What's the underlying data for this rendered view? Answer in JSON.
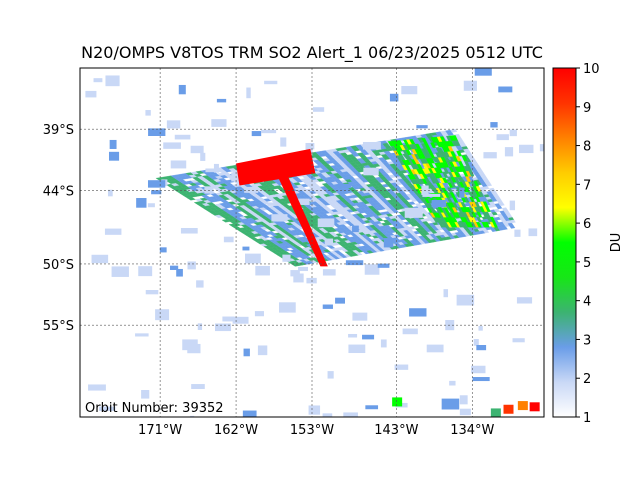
{
  "title": "N20/OMPS V8TOS TRM SO2 Alert_1 06/23/2025 0512 UTC",
  "annotation": "Orbit Number: 39352",
  "colors": {
    "swath_red": "#ff0000",
    "scale": [
      "#ffffff",
      "#c9d8f6",
      "#6a9de8",
      "#3cb371",
      "#17e617",
      "#00ff00",
      "#ffff00",
      "#ffcc00",
      "#ff8000",
      "#ff3300",
      "#ff0000"
    ]
  },
  "chart_data": {
    "type": "heatmap",
    "title": "N20/OMPS V8TOS TRM SO2 Alert_1 06/23/2025 0512 UTC",
    "xlabel": "",
    "ylabel": "",
    "x_ticks": [
      "171°W",
      "162°W",
      "153°W",
      "143°W",
      "134°W"
    ],
    "x_tick_values": [
      -171,
      -162,
      -153,
      -143,
      -134
    ],
    "y_ticks": [
      "39°S",
      "44°S",
      "50°S",
      "55°S"
    ],
    "y_tick_values": [
      -39,
      -44,
      -50,
      -55
    ],
    "xlim": [
      -180.5,
      -125.5
    ],
    "ylim": [
      -62.5,
      -34
    ],
    "grid": true,
    "colorbar": {
      "label": "DU",
      "range": [
        1,
        10
      ],
      "ticks": [
        "1",
        "2",
        "3",
        "4",
        "5",
        "6",
        "7",
        "8",
        "9",
        "10"
      ]
    },
    "swath_corners": {
      "lon": [
        -171.5,
        -136,
        -128.5,
        -155
      ],
      "lat": [
        -43,
        -39,
        -47,
        -50.2
      ]
    },
    "high_value_region": {
      "value": 10,
      "lon": [
        -158,
        -153.5,
        -148.5,
        -152
      ],
      "lat": [
        -41.5,
        -40.5,
        -50.2,
        -50.2
      ]
    },
    "elevated_region": {
      "values": [
        4,
        5,
        6,
        7
      ],
      "lon": [
        -144,
        -136,
        -131,
        -138
      ],
      "lat": [
        -40,
        -39.5,
        -47,
        -47
      ]
    }
  }
}
